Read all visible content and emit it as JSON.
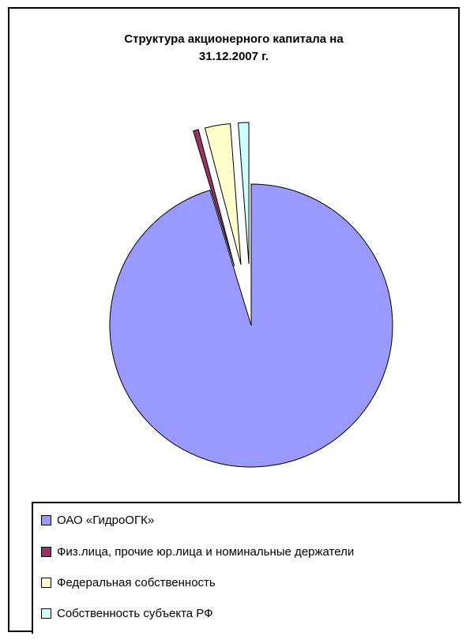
{
  "chart_data": {
    "type": "pie",
    "title": "Структура акционерного капитала на\n31.12.2007 г.",
    "legend_position": "bottom",
    "slices": [
      {
        "name": "ОАО  «ГидроОГК»",
        "value": 95.3,
        "color": "#9999ff",
        "exploded": false
      },
      {
        "name": "Физ.лица, прочие юр.лица и номинальные держатели",
        "value": 0.6,
        "color": "#993366",
        "exploded": true
      },
      {
        "name": "Федеральная собственность",
        "value": 2.9,
        "color": "#ffffcc",
        "exploded": true
      },
      {
        "name": "Собственность субъекта РФ",
        "value": 1.2,
        "color": "#ccffff",
        "exploded": true
      }
    ]
  }
}
